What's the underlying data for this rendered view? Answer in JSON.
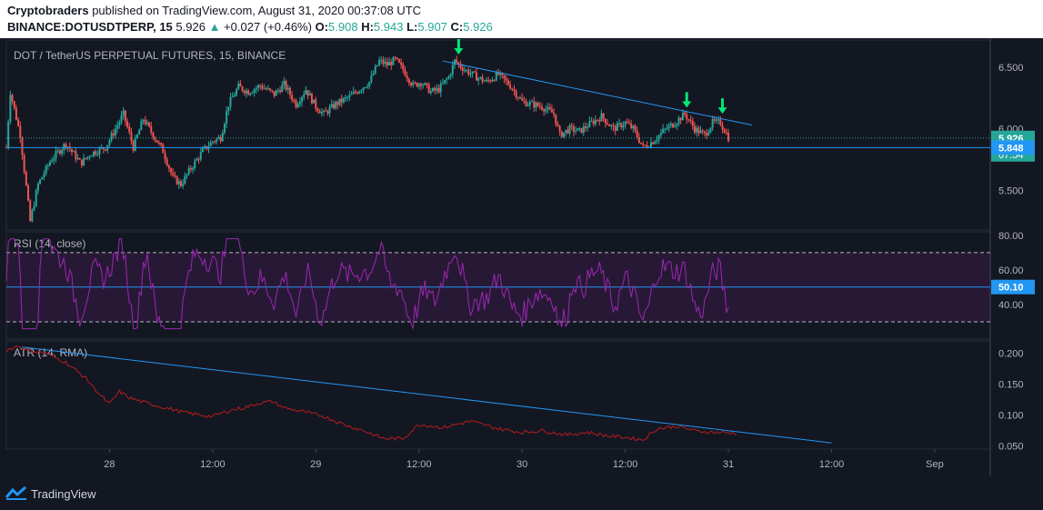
{
  "header": {
    "publisher": "Cryptobraders",
    "published_text": "published on TradingView.com, August 31, 2020 00:37:08 UTC",
    "symbol": "BINANCE:DOTUSDTPERP, 15",
    "last": "5.926",
    "change": "+0.027 (+0.46%)",
    "open_label": "O:",
    "open": "5.908",
    "high_label": "H:",
    "high": "5.943",
    "low_label": "L:",
    "low": "5.907",
    "close_label": "C:",
    "close": "5.926"
  },
  "footer": {
    "brand": "TradingView"
  },
  "colors": {
    "background": "#131722",
    "up": "#26a69a",
    "down": "#ef5350",
    "trendline": "#2196f3",
    "rsi": "#9c27b0",
    "atr": "#b71c1c",
    "marker": "#00e676"
  },
  "chart_data": [
    {
      "type": "candlestick",
      "title": "DOT / TetherUS PERPETUAL FUTURES, 15, BINANCE",
      "ylim": [
        5.18,
        6.72
      ],
      "y_ticks": [
        5.5,
        6.0,
        6.5
      ],
      "y_tick_labels": [
        "5.500",
        "6.000",
        "6.500"
      ],
      "x_tick_labels": [
        "28",
        "12:00",
        "29",
        "12:00",
        "30",
        "12:00",
        "31",
        "12:00",
        "Sep"
      ],
      "x_tick_index": [
        104,
        208,
        312,
        416,
        520,
        624,
        728,
        832,
        936
      ],
      "visible_range_bars": [
        0,
        992
      ],
      "series_anchor_points": [
        [
          0,
          5.85
        ],
        [
          4,
          6.3
        ],
        [
          14,
          5.95
        ],
        [
          24,
          5.25
        ],
        [
          32,
          5.55
        ],
        [
          45,
          5.75
        ],
        [
          60,
          5.88
        ],
        [
          75,
          5.72
        ],
        [
          85,
          5.8
        ],
        [
          100,
          5.85
        ],
        [
          110,
          6.0
        ],
        [
          118,
          6.12
        ],
        [
          128,
          5.85
        ],
        [
          138,
          6.08
        ],
        [
          148,
          5.95
        ],
        [
          158,
          5.82
        ],
        [
          168,
          5.6
        ],
        [
          176,
          5.55
        ],
        [
          186,
          5.68
        ],
        [
          198,
          5.82
        ],
        [
          208,
          5.9
        ],
        [
          216,
          5.93
        ],
        [
          224,
          6.2
        ],
        [
          234,
          6.34
        ],
        [
          244,
          6.3
        ],
        [
          256,
          6.35
        ],
        [
          270,
          6.28
        ],
        [
          280,
          6.36
        ],
        [
          292,
          6.2
        ],
        [
          302,
          6.32
        ],
        [
          312,
          6.18
        ],
        [
          320,
          6.12
        ],
        [
          332,
          6.2
        ],
        [
          346,
          6.26
        ],
        [
          356,
          6.32
        ],
        [
          366,
          6.38
        ],
        [
          376,
          6.55
        ],
        [
          384,
          6.52
        ],
        [
          392,
          6.56
        ],
        [
          400,
          6.48
        ],
        [
          410,
          6.35
        ],
        [
          418,
          6.38
        ],
        [
          428,
          6.3
        ],
        [
          436,
          6.32
        ],
        [
          446,
          6.42
        ],
        [
          452,
          6.55
        ],
        [
          462,
          6.48
        ],
        [
          474,
          6.42
        ],
        [
          484,
          6.38
        ],
        [
          496,
          6.44
        ],
        [
          508,
          6.35
        ],
        [
          520,
          6.22
        ],
        [
          530,
          6.2
        ],
        [
          540,
          6.18
        ],
        [
          552,
          6.12
        ],
        [
          558,
          5.95
        ],
        [
          568,
          6.0
        ],
        [
          578,
          5.98
        ],
        [
          590,
          6.05
        ],
        [
          600,
          6.1
        ],
        [
          612,
          6.0
        ],
        [
          624,
          6.05
        ],
        [
          632,
          6.0
        ],
        [
          642,
          5.85
        ],
        [
          652,
          5.9
        ],
        [
          662,
          5.98
        ],
        [
          674,
          6.05
        ],
        [
          684,
          6.12
        ],
        [
          694,
          6.0
        ],
        [
          704,
          5.95
        ],
        [
          712,
          6.05
        ],
        [
          720,
          6.05
        ],
        [
          728,
          5.93
        ]
      ],
      "marked_high": 6.582,
      "marked_low": 5.22,
      "down_markers": [
        {
          "i": 456,
          "price": 6.58
        },
        {
          "i": 686,
          "price": 6.15
        },
        {
          "i": 722,
          "price": 6.1
        }
      ],
      "trendlines": [
        {
          "from": [
            440,
            6.55
          ],
          "to": [
            752,
            6.03
          ]
        }
      ],
      "horizontal_line": {
        "value": 5.848,
        "label": "5.848"
      },
      "last_price": {
        "value": 5.926,
        "label": "5.926",
        "countdown": "07:54"
      }
    },
    {
      "type": "line",
      "title": "RSI (14, close)",
      "ylim": [
        20,
        82
      ],
      "y_ticks": [
        40,
        60,
        80
      ],
      "y_tick_labels": [
        "40.00",
        "60.00",
        "80.00"
      ],
      "band": [
        30,
        70
      ],
      "current": {
        "value": 50.1,
        "label": "50.10"
      }
    },
    {
      "type": "line",
      "title": "ATR (14, RMA)",
      "ylim": [
        0.045,
        0.22
      ],
      "y_ticks": [
        0.05,
        0.1,
        0.15,
        0.2
      ],
      "y_tick_labels": [
        "0.050",
        "0.100",
        "0.150",
        "0.200"
      ],
      "anchor_points": [
        [
          0,
          0.205
        ],
        [
          12,
          0.212
        ],
        [
          22,
          0.205
        ],
        [
          40,
          0.2
        ],
        [
          60,
          0.185
        ],
        [
          80,
          0.16
        ],
        [
          96,
          0.13
        ],
        [
          104,
          0.118
        ],
        [
          114,
          0.138
        ],
        [
          124,
          0.128
        ],
        [
          140,
          0.12
        ],
        [
          160,
          0.112
        ],
        [
          180,
          0.104
        ],
        [
          196,
          0.1
        ],
        [
          208,
          0.098
        ],
        [
          226,
          0.108
        ],
        [
          240,
          0.112
        ],
        [
          256,
          0.12
        ],
        [
          268,
          0.122
        ],
        [
          280,
          0.112
        ],
        [
          300,
          0.105
        ],
        [
          320,
          0.098
        ],
        [
          340,
          0.085
        ],
        [
          360,
          0.075
        ],
        [
          380,
          0.062
        ],
        [
          400,
          0.062
        ],
        [
          416,
          0.085
        ],
        [
          440,
          0.08
        ],
        [
          468,
          0.09
        ],
        [
          496,
          0.078
        ],
        [
          520,
          0.072
        ],
        [
          540,
          0.075
        ],
        [
          564,
          0.068
        ],
        [
          586,
          0.072
        ],
        [
          608,
          0.066
        ],
        [
          624,
          0.064
        ],
        [
          642,
          0.06
        ],
        [
          656,
          0.078
        ],
        [
          676,
          0.082
        ],
        [
          696,
          0.074
        ],
        [
          716,
          0.072
        ],
        [
          736,
          0.071
        ]
      ],
      "trendline": {
        "from": [
          16,
          0.21
        ],
        "to": [
          832,
          0.055
        ]
      }
    }
  ]
}
